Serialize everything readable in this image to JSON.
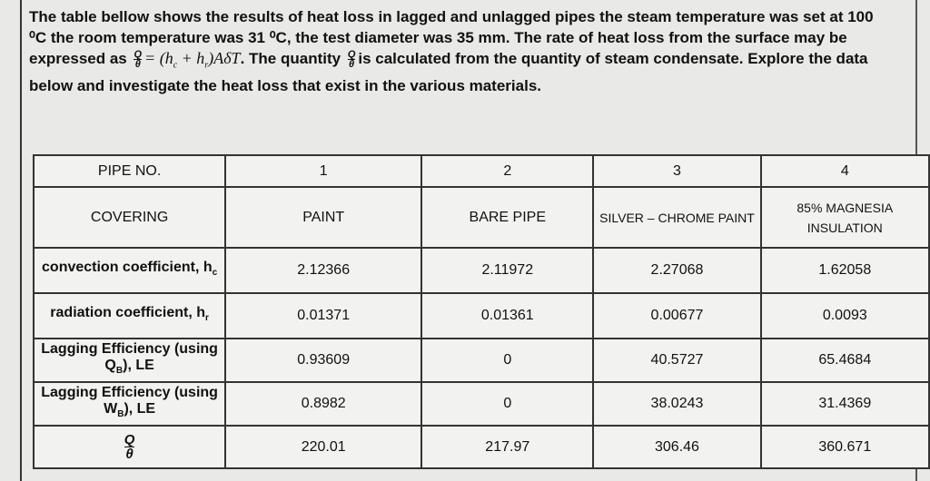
{
  "intro": {
    "text_1": "The table bellow shows the results of heat loss in lagged and unlagged pipes the steam temperature was set at 100 ⁰C the room temperature was 31 ⁰C, the test diameter was 35 mm. The rate of heat loss from the surface may be expressed as",
    "formula": {
      "numerator": "Q",
      "denominator": "θ",
      "rhs_1": "= (h",
      "sub_1": "c",
      "rhs_2": " + h",
      "sub_2": "r",
      "rhs_3": ")AδT"
    },
    "text_2": ". The quantity",
    "quantity": {
      "numerator": "Q",
      "denominator": "θ"
    },
    "text_3": "is calculated from the quantity of steam condensate. Explore the data below and investigate the heat loss that exist in the various materials."
  },
  "table": {
    "header": [
      "PIPE NO.",
      "1",
      "2",
      "3",
      "4"
    ],
    "rows": [
      {
        "label": {
          "text": "COVERING"
        },
        "cells": [
          "PAINT",
          "BARE PIPE",
          "SILVER – CHROME PAINT",
          "85% MAGNESIA INSULATION"
        ]
      },
      {
        "label": {
          "text": "convection coefficient, h",
          "sub": "c"
        },
        "cells": [
          "2.12366",
          "2.11972",
          "2.27068",
          "1.62058"
        ]
      },
      {
        "label": {
          "text": "radiation coefficient, h",
          "sub": "r"
        },
        "cells": [
          "0.01371",
          "0.01361",
          "0.00677",
          "0.0093"
        ]
      },
      {
        "label": {
          "text": "Lagging Efficiency (using Q",
          "sub": "B",
          "tail": "), LE"
        },
        "cells": [
          "0.93609",
          "0",
          "40.5727",
          "65.4684"
        ]
      },
      {
        "label": {
          "text": "Lagging Efficiency (using W",
          "sub": "B",
          "tail": "), LE"
        },
        "cells": [
          "0.8982",
          "0",
          "38.0243",
          "31.4369"
        ]
      },
      {
        "label": {
          "numerator": "Q",
          "denominator": "θ"
        },
        "cells": [
          "220.01",
          "217.97",
          "306.46",
          "360.671"
        ]
      }
    ]
  }
}
